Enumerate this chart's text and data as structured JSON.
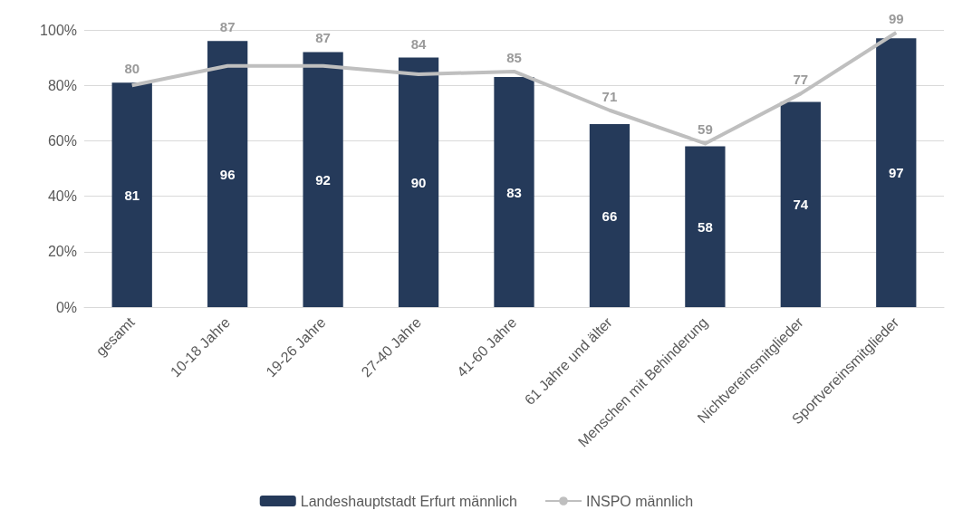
{
  "chart_data": {
    "type": "bar",
    "categories": [
      "gesamt",
      "10-18 Jahre",
      "19-26 Jahre",
      "27-40 Jahre",
      "41-60 Jahre",
      "61 Jahre und älter",
      "Menschen mit Behinderung",
      "Nichtvereinsmitglieder",
      "Sportvereinsmitglieder"
    ],
    "series": [
      {
        "name": "Landeshauptstadt Erfurt männlich",
        "color": "#253a5a",
        "values": [
          81,
          96,
          92,
          90,
          83,
          66,
          58,
          74,
          97
        ]
      },
      {
        "name": "INSPO männlich",
        "type": "line",
        "color": "#bfbfbf",
        "values": [
          80,
          87,
          87,
          84,
          85,
          71,
          59,
          77,
          99
        ]
      }
    ],
    "ylim": [
      0,
      100
    ],
    "yticks": [
      {
        "value": 0,
        "label": "0%"
      },
      {
        "value": 20,
        "label": "20%"
      },
      {
        "value": 40,
        "label": "40%"
      },
      {
        "value": 60,
        "label": "60%"
      },
      {
        "value": 80,
        "label": "80%"
      },
      {
        "value": 100,
        "label": "100%"
      }
    ],
    "grid": "y",
    "legend": "bottom",
    "data_labels": true,
    "marker": "none"
  }
}
